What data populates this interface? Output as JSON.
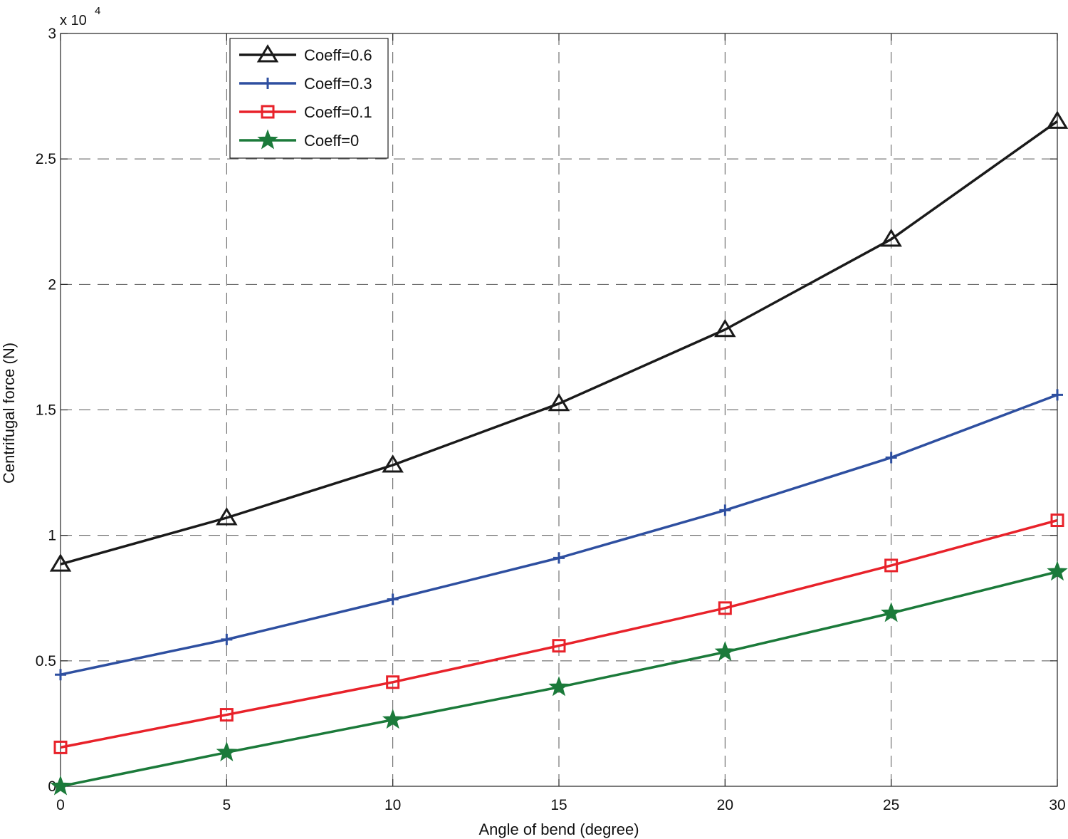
{
  "chart_data": {
    "type": "line",
    "xlabel": "Angle of bend (degree)",
    "ylabel": "Centrifugal force (N)",
    "y_multiplier_label": "x 10",
    "y_multiplier_exponent": "4",
    "xlim": [
      0,
      30
    ],
    "ylim": [
      0,
      3
    ],
    "x_ticks": [
      0,
      5,
      10,
      15,
      20,
      25,
      30
    ],
    "y_ticks": [
      0,
      0.5,
      1,
      1.5,
      2,
      2.5,
      3
    ],
    "x_tick_labels": [
      "0",
      "5",
      "10",
      "15",
      "20",
      "25",
      "30"
    ],
    "y_tick_labels": [
      "0",
      "0.5",
      "1",
      "1.5",
      "2",
      "2.5",
      "3"
    ],
    "grid": true,
    "legend_position": "top-left",
    "x": [
      0,
      5,
      10,
      15,
      20,
      25,
      30
    ],
    "series": [
      {
        "name": "Coeff=0.6",
        "color": "#1a1a1a",
        "marker": "triangle",
        "values": [
          0.885,
          1.07,
          1.28,
          1.525,
          1.82,
          2.18,
          2.65
        ]
      },
      {
        "name": "Coeff=0.3",
        "color": "#2e4fa0",
        "marker": "plus",
        "values": [
          0.445,
          0.585,
          0.745,
          0.91,
          1.1,
          1.31,
          1.56
        ]
      },
      {
        "name": "Coeff=0.1",
        "color": "#e8222a",
        "marker": "square",
        "values": [
          0.155,
          0.285,
          0.415,
          0.56,
          0.71,
          0.88,
          1.06
        ]
      },
      {
        "name": "Coeff=0",
        "color": "#1b7a3a",
        "marker": "star",
        "values": [
          0.0,
          0.135,
          0.265,
          0.395,
          0.535,
          0.69,
          0.855
        ]
      }
    ]
  }
}
